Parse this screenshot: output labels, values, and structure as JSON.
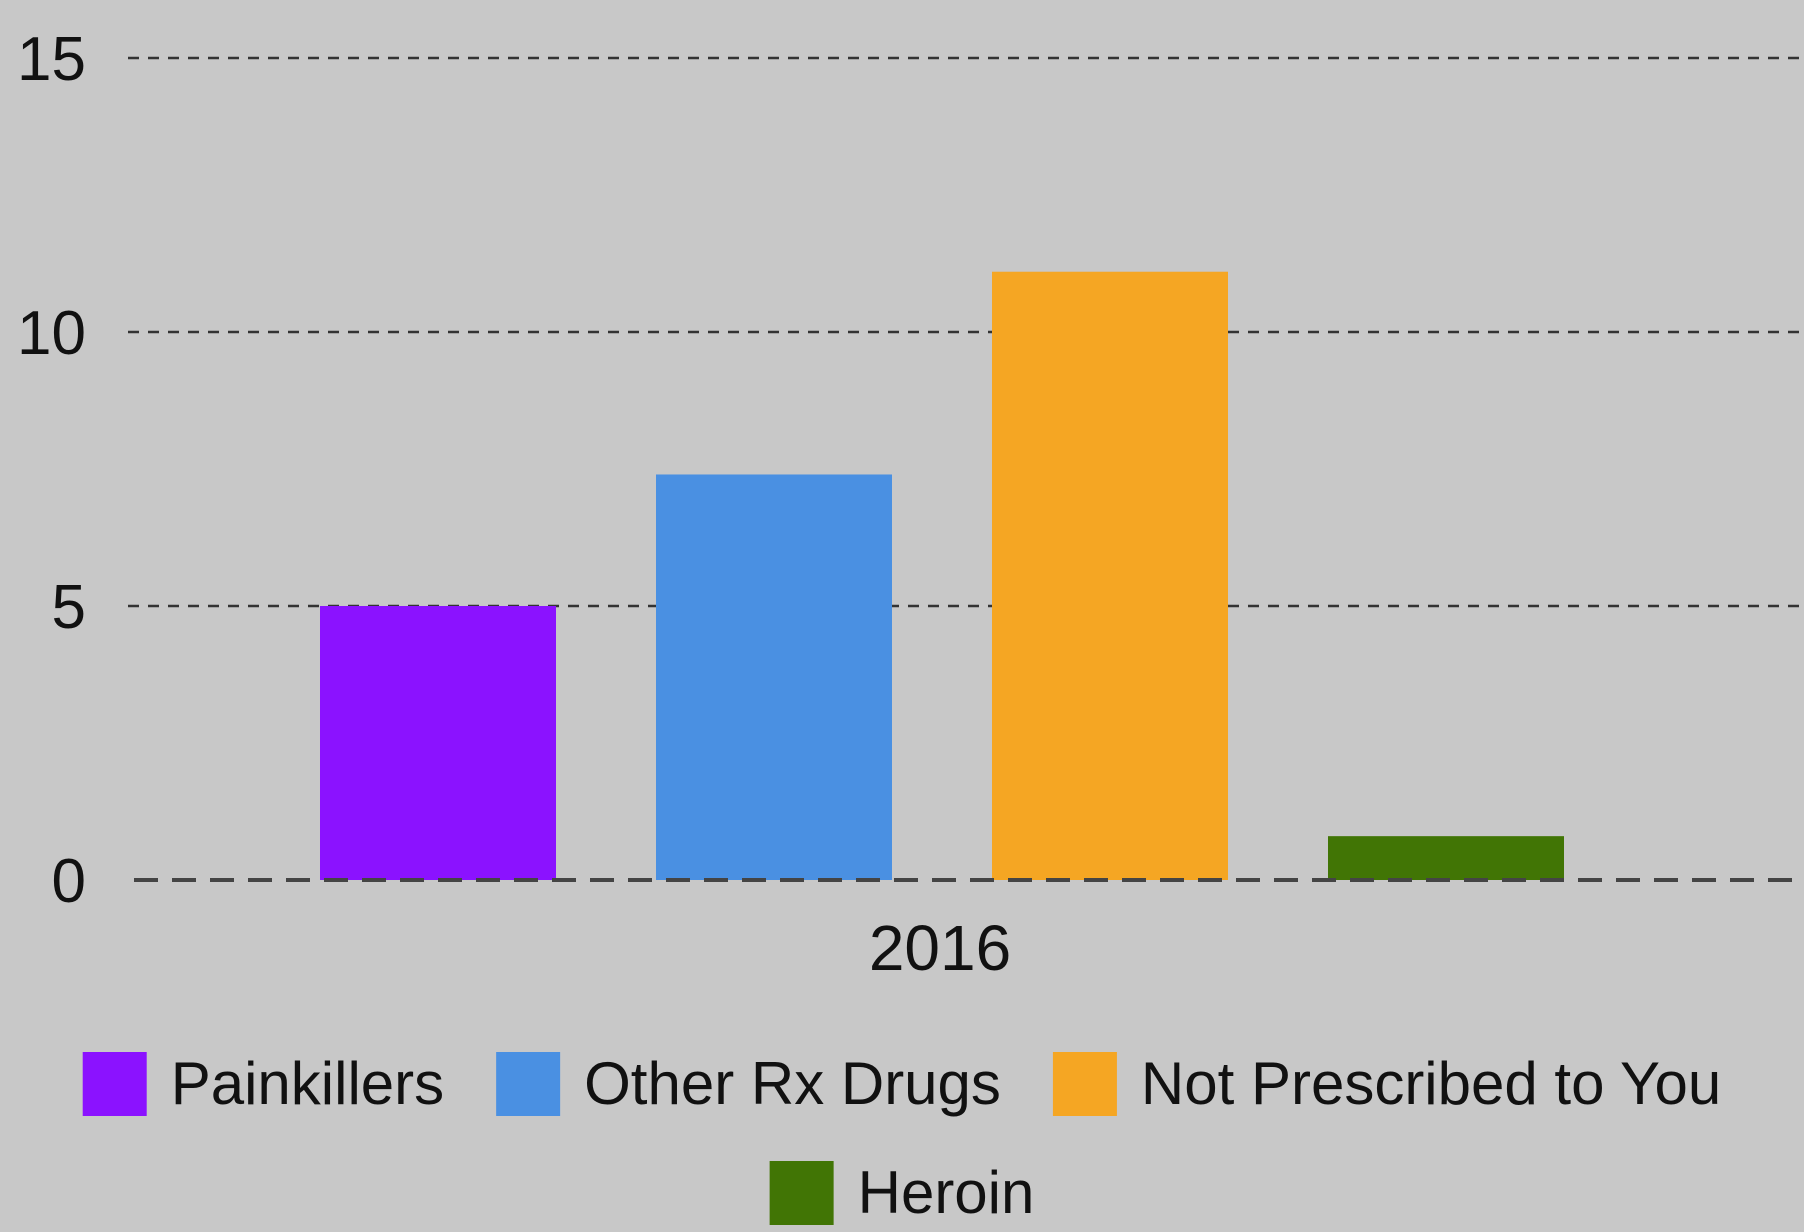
{
  "chart_data": {
    "type": "bar",
    "categories": [
      "2016"
    ],
    "series": [
      {
        "name": "Painkillers",
        "values": [
          5.0
        ],
        "color": "#8b12ff"
      },
      {
        "name": "Other Rx Drugs",
        "values": [
          7.4
        ],
        "color": "#4a90e2"
      },
      {
        "name": "Not Prescribed to You",
        "values": [
          11.1
        ],
        "color": "#f5a623"
      },
      {
        "name": "Heroin",
        "values": [
          0.8
        ],
        "color": "#417505"
      }
    ],
    "title": "",
    "xlabel": "",
    "ylabel": "",
    "ylim": [
      0,
      15
    ],
    "yticks": [
      0,
      5,
      10,
      15
    ],
    "grid": true,
    "legend_position": "bottom"
  }
}
